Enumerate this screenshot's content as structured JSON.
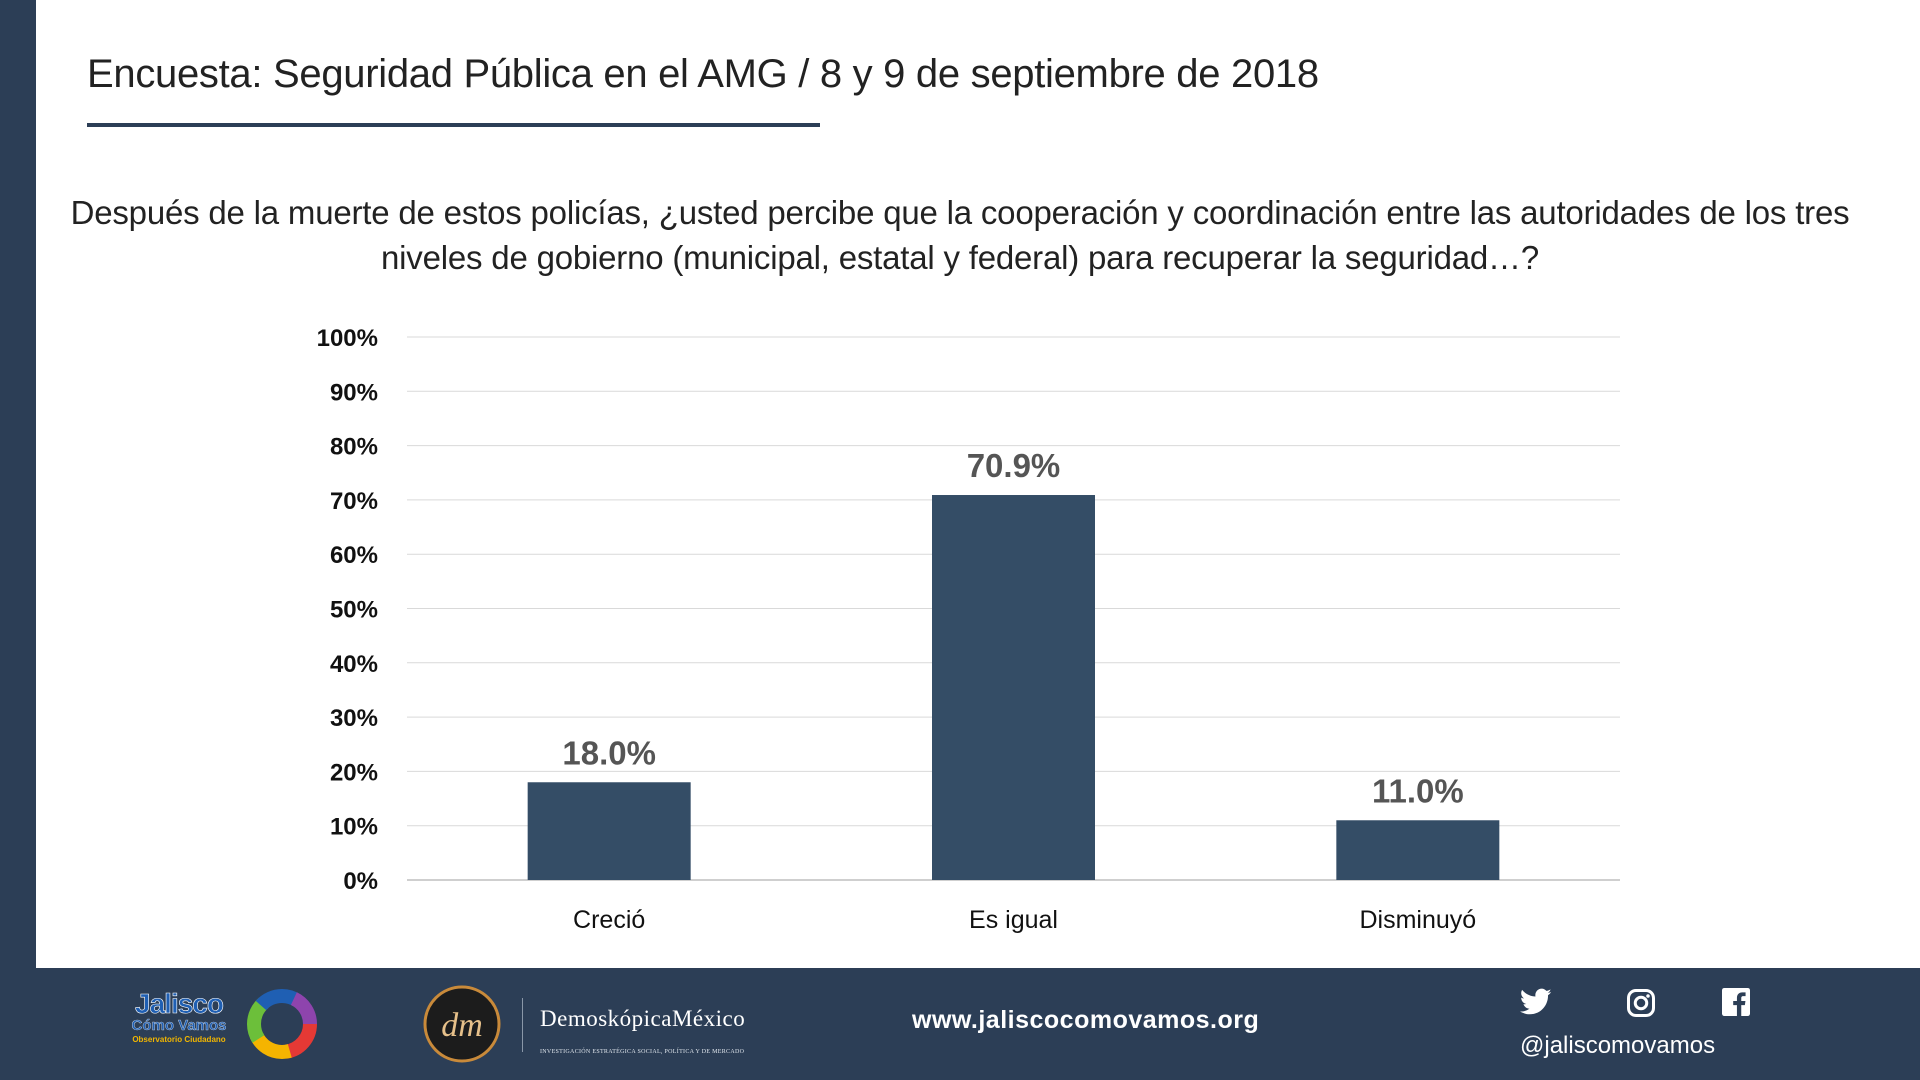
{
  "header": {
    "title": "Encuesta: Seguridad Pública en el AMG / 8 y 9 de septiembre de 2018"
  },
  "question": "Después de la muerte de estos policías, ¿usted percibe que la cooperación y coordinación entre las autoridades de los tres niveles de gobierno (municipal, estatal y federal) para recuperar la seguridad…?",
  "chart_data": {
    "type": "bar",
    "categories": [
      "Creció",
      "Es igual",
      "Disminuyó"
    ],
    "values": [
      18.0,
      70.9,
      11.0
    ],
    "data_labels": [
      "18.0%",
      "70.9%",
      "11.0%"
    ],
    "title": "",
    "xlabel": "",
    "ylabel": "",
    "ylim": [
      0,
      100
    ],
    "yticks": [
      0,
      10,
      20,
      30,
      40,
      50,
      60,
      70,
      80,
      90,
      100
    ],
    "ytick_labels": [
      "0%",
      "10%",
      "20%",
      "30%",
      "40%",
      "50%",
      "60%",
      "70%",
      "80%",
      "90%",
      "100%"
    ],
    "grid": true,
    "legend": "none",
    "bar_color": "#344d66"
  },
  "footer": {
    "logo_jcv": {
      "line1": "Jalisco",
      "line2": "Cómo Vamos",
      "line3": "Observatorio Ciudadano"
    },
    "logo_dm": {
      "mark": "dm",
      "name": "DemoskópicaMéxico",
      "tagline": "INVESTIGACIÓN ESTRATÉGICA SOCIAL, POLÍTICA Y DE MERCADO"
    },
    "website": "www.jaliscocomovamos.org",
    "social_handle": "@jaliscomovamos",
    "social_icons": [
      "twitter-icon",
      "instagram-icon",
      "facebook-icon"
    ]
  },
  "colors": {
    "navy": "#2c3e56",
    "bar": "#344d66",
    "data_label": "#555555",
    "jcv_blue": "#1f5fb3",
    "jcv_yellow": "#f2b600",
    "ring": [
      "#e53935",
      "#f5b400",
      "#6cbf3a",
      "#1f5fb3",
      "#8e44ad"
    ]
  }
}
